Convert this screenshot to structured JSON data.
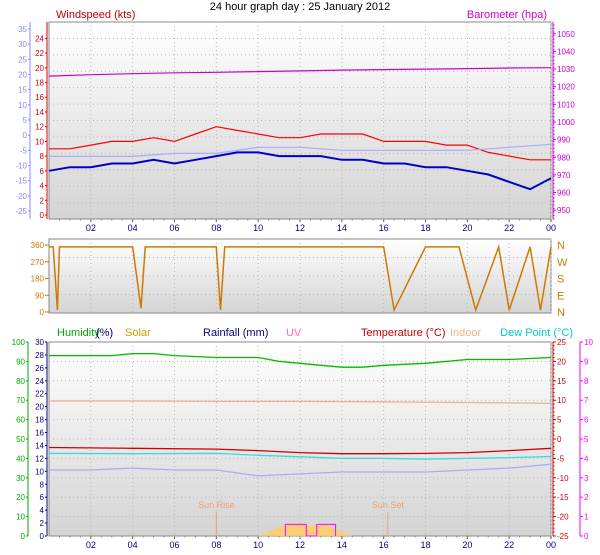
{
  "title": "24 hour graph day : 25 January 2012",
  "chart_data": [
    {
      "type": "line",
      "panel": "wind-pressure",
      "labels": {
        "windspeed": "Windspeed (kts)",
        "barometer": "Barometer (hpa)"
      },
      "x_ticks": [
        "02",
        "04",
        "06",
        "08",
        "10",
        "12",
        "14",
        "16",
        "18",
        "20",
        "22",
        "00"
      ],
      "x_range_hours": [
        0,
        24
      ],
      "axes": {
        "windspeed": {
          "range": [
            0,
            25
          ],
          "ticks": [
            0,
            2,
            4,
            6,
            8,
            10,
            12,
            14,
            16,
            18,
            20,
            22,
            24
          ],
          "color": "#d00000"
        },
        "temperature_inner": {
          "range": [
            -25,
            35
          ],
          "ticks": [
            -25,
            -20,
            -15,
            -10,
            -5,
            0,
            5,
            10,
            15,
            20,
            25,
            30,
            35
          ],
          "color": "#8888ff"
        },
        "barometer": {
          "range": [
            945,
            1055
          ],
          "ticks": [
            950,
            960,
            970,
            980,
            990,
            1000,
            1010,
            1020,
            1030,
            1040,
            1050
          ],
          "color": "#cc00cc"
        }
      },
      "series": [
        {
          "name": "barometer",
          "axis": "barometer",
          "color": "#cc00cc",
          "x": [
            0,
            2,
            4,
            6,
            8,
            10,
            12,
            14,
            16,
            18,
            20,
            22,
            24
          ],
          "values": [
            1026,
            1026.8,
            1027.4,
            1027.9,
            1028.2,
            1028.6,
            1029,
            1029.4,
            1029.7,
            1030,
            1030.3,
            1030.6,
            1030.8
          ]
        },
        {
          "name": "gust",
          "axis": "windspeed",
          "color": "#ff0000",
          "x": [
            0,
            1,
            2,
            3,
            4,
            5,
            6,
            7,
            8,
            9,
            10,
            11,
            12,
            13,
            14,
            15,
            16,
            17,
            18,
            19,
            20,
            21,
            22,
            23,
            24
          ],
          "values": [
            9,
            9,
            9.5,
            10,
            10,
            10.5,
            10,
            11,
            12,
            11.5,
            11,
            10.5,
            10.5,
            11,
            11,
            11,
            10,
            10,
            10,
            9.5,
            9.5,
            8.5,
            8,
            7.5,
            7.5
          ]
        },
        {
          "name": "average",
          "axis": "windspeed",
          "color": "#0000cc",
          "x": [
            0,
            1,
            2,
            3,
            4,
            5,
            6,
            7,
            8,
            9,
            10,
            11,
            12,
            13,
            14,
            15,
            16,
            17,
            18,
            19,
            20,
            21,
            22,
            23,
            24
          ],
          "values": [
            6,
            6.5,
            6.5,
            7,
            7,
            7.5,
            7,
            7.5,
            8,
            8.5,
            8.5,
            8,
            8,
            8,
            7.5,
            7.5,
            7,
            7,
            6.5,
            6.5,
            6,
            5.5,
            4.5,
            3.5,
            5
          ]
        },
        {
          "name": "temperature",
          "axis": "temperature_inner",
          "color": "#aaaaff",
          "x": [
            0,
            2,
            4,
            6,
            8,
            10,
            12,
            14,
            16,
            18,
            20,
            22,
            24
          ],
          "values": [
            -7,
            -7,
            -7,
            -6,
            -6,
            -4,
            -4,
            -5,
            -5,
            -5,
            -5,
            -4,
            -3
          ]
        }
      ]
    },
    {
      "type": "line",
      "panel": "wind-direction",
      "y_ticks": [
        0,
        90,
        180,
        270,
        360
      ],
      "compass_labels": [
        "N",
        "W",
        "S",
        "E",
        "N"
      ],
      "y_range": [
        0,
        360
      ],
      "series": [
        {
          "name": "direction",
          "color": "#cc7a00",
          "x": [
            0,
            0.2,
            0.4,
            0.5,
            2,
            4,
            4.4,
            4.6,
            5,
            6,
            8,
            8.2,
            8.4,
            9.9,
            10.1,
            13,
            16,
            16.5,
            18,
            19.6,
            20.4,
            21.5,
            22,
            23,
            23.5,
            24
          ],
          "values": [
            350,
            350,
            10,
            350,
            350,
            350,
            20,
            350,
            350,
            350,
            350,
            10,
            350,
            350,
            350,
            350,
            350,
            10,
            350,
            350,
            10,
            350,
            10,
            350,
            10,
            350
          ]
        }
      ]
    },
    {
      "type": "line",
      "panel": "temperature-humidity",
      "labels": {
        "humidity": "Humidity",
        "humidity_unit": "(%)",
        "solar": "Solar",
        "rainfall": "Rainfall (mm)",
        "uv": "UV",
        "temperature": "Temperature (°C)",
        "indoor": "Indoor",
        "dewpoint": "Dew Point (°C)",
        "sunrise": "Sun Rise",
        "sunset": "Sun Set"
      },
      "axes": {
        "humidity": {
          "range": [
            0,
            100
          ],
          "ticks": [
            0,
            10,
            20,
            30,
            40,
            50,
            60,
            70,
            80,
            90,
            100
          ],
          "color": "#00aa00"
        },
        "rainfall": {
          "range": [
            0,
            30
          ],
          "ticks": [
            0,
            2,
            4,
            6,
            8,
            10,
            12,
            14,
            16,
            18,
            20,
            22,
            24,
            26,
            28,
            30
          ],
          "color": "#000080"
        },
        "temperature": {
          "range": [
            -25,
            25
          ],
          "ticks": [
            -25,
            -20,
            -15,
            -10,
            -5,
            0,
            5,
            10,
            15,
            20,
            25
          ],
          "color": "#cc0000"
        },
        "uv": {
          "range": [
            0,
            10
          ],
          "ticks": [
            0,
            1,
            2,
            3,
            4,
            5,
            6,
            7,
            8,
            9,
            10
          ],
          "color": "#ff00ff"
        }
      },
      "series": [
        {
          "name": "humidity",
          "axis": "humidity",
          "color": "#00bb00",
          "x": [
            0,
            2,
            3,
            4,
            5,
            6,
            8,
            10,
            11,
            12,
            13,
            14,
            15,
            16,
            18,
            20,
            22,
            24
          ],
          "values": [
            93,
            93,
            93,
            94,
            94,
            93,
            92,
            92,
            90,
            89,
            88,
            87,
            87,
            88,
            89,
            91,
            91,
            92
          ]
        },
        {
          "name": "indoor",
          "axis": "temperature",
          "color": "#f0b090",
          "x": [
            0,
            4,
            8,
            12,
            16,
            20,
            24
          ],
          "values": [
            9.8,
            9.8,
            9.7,
            9.7,
            9.6,
            9.4,
            9.2
          ]
        },
        {
          "name": "temperature",
          "axis": "temperature",
          "color": "#cc0000",
          "x": [
            0,
            4,
            8,
            10,
            12,
            14,
            16,
            18,
            20,
            22,
            24
          ],
          "values": [
            -2.2,
            -2.4,
            -2.6,
            -3,
            -3.5,
            -3.8,
            -3.8,
            -3.7,
            -3.5,
            -3,
            -2.4
          ]
        },
        {
          "name": "dewpoint",
          "axis": "temperature",
          "color": "#33dddd",
          "x": [
            0,
            4,
            8,
            10,
            12,
            14,
            16,
            18,
            20,
            22,
            24
          ],
          "values": [
            -3.7,
            -3.8,
            -3.7,
            -4.2,
            -4.6,
            -5,
            -5,
            -5.2,
            -5,
            -4.8,
            -4.5
          ]
        },
        {
          "name": "apparent",
          "axis": "temperature",
          "color": "#aaaaff",
          "x": [
            0,
            2,
            4,
            6,
            8,
            10,
            12,
            14,
            16,
            18,
            20,
            22,
            24
          ],
          "values": [
            -8,
            -8,
            -7.5,
            -8,
            -8,
            -9.5,
            -9,
            -8.5,
            -8.5,
            -8.5,
            -8,
            -7.5,
            -6.5
          ]
        },
        {
          "name": "solar",
          "axis": "rainfall",
          "color": "#ffcc66",
          "x": [
            10,
            10.5,
            11,
            11.5,
            12,
            12.5,
            13,
            13.5,
            14,
            14.5
          ],
          "values": [
            0,
            0.6,
            1.4,
            1.8,
            2.0,
            1.6,
            1.8,
            1.4,
            0.6,
            0
          ]
        },
        {
          "name": "uv",
          "axis": "uv",
          "color": "#ff00ff",
          "x": [
            11.3,
            11.3,
            12.3,
            12.3,
            12.8,
            12.8,
            13.7,
            13.7
          ],
          "values": [
            0,
            0.6,
            0.6,
            0,
            0,
            0.6,
            0.6,
            0
          ]
        }
      ],
      "markers": {
        "sunrise_hour": 8.0,
        "sunset_hour": 16.2
      }
    }
  ]
}
